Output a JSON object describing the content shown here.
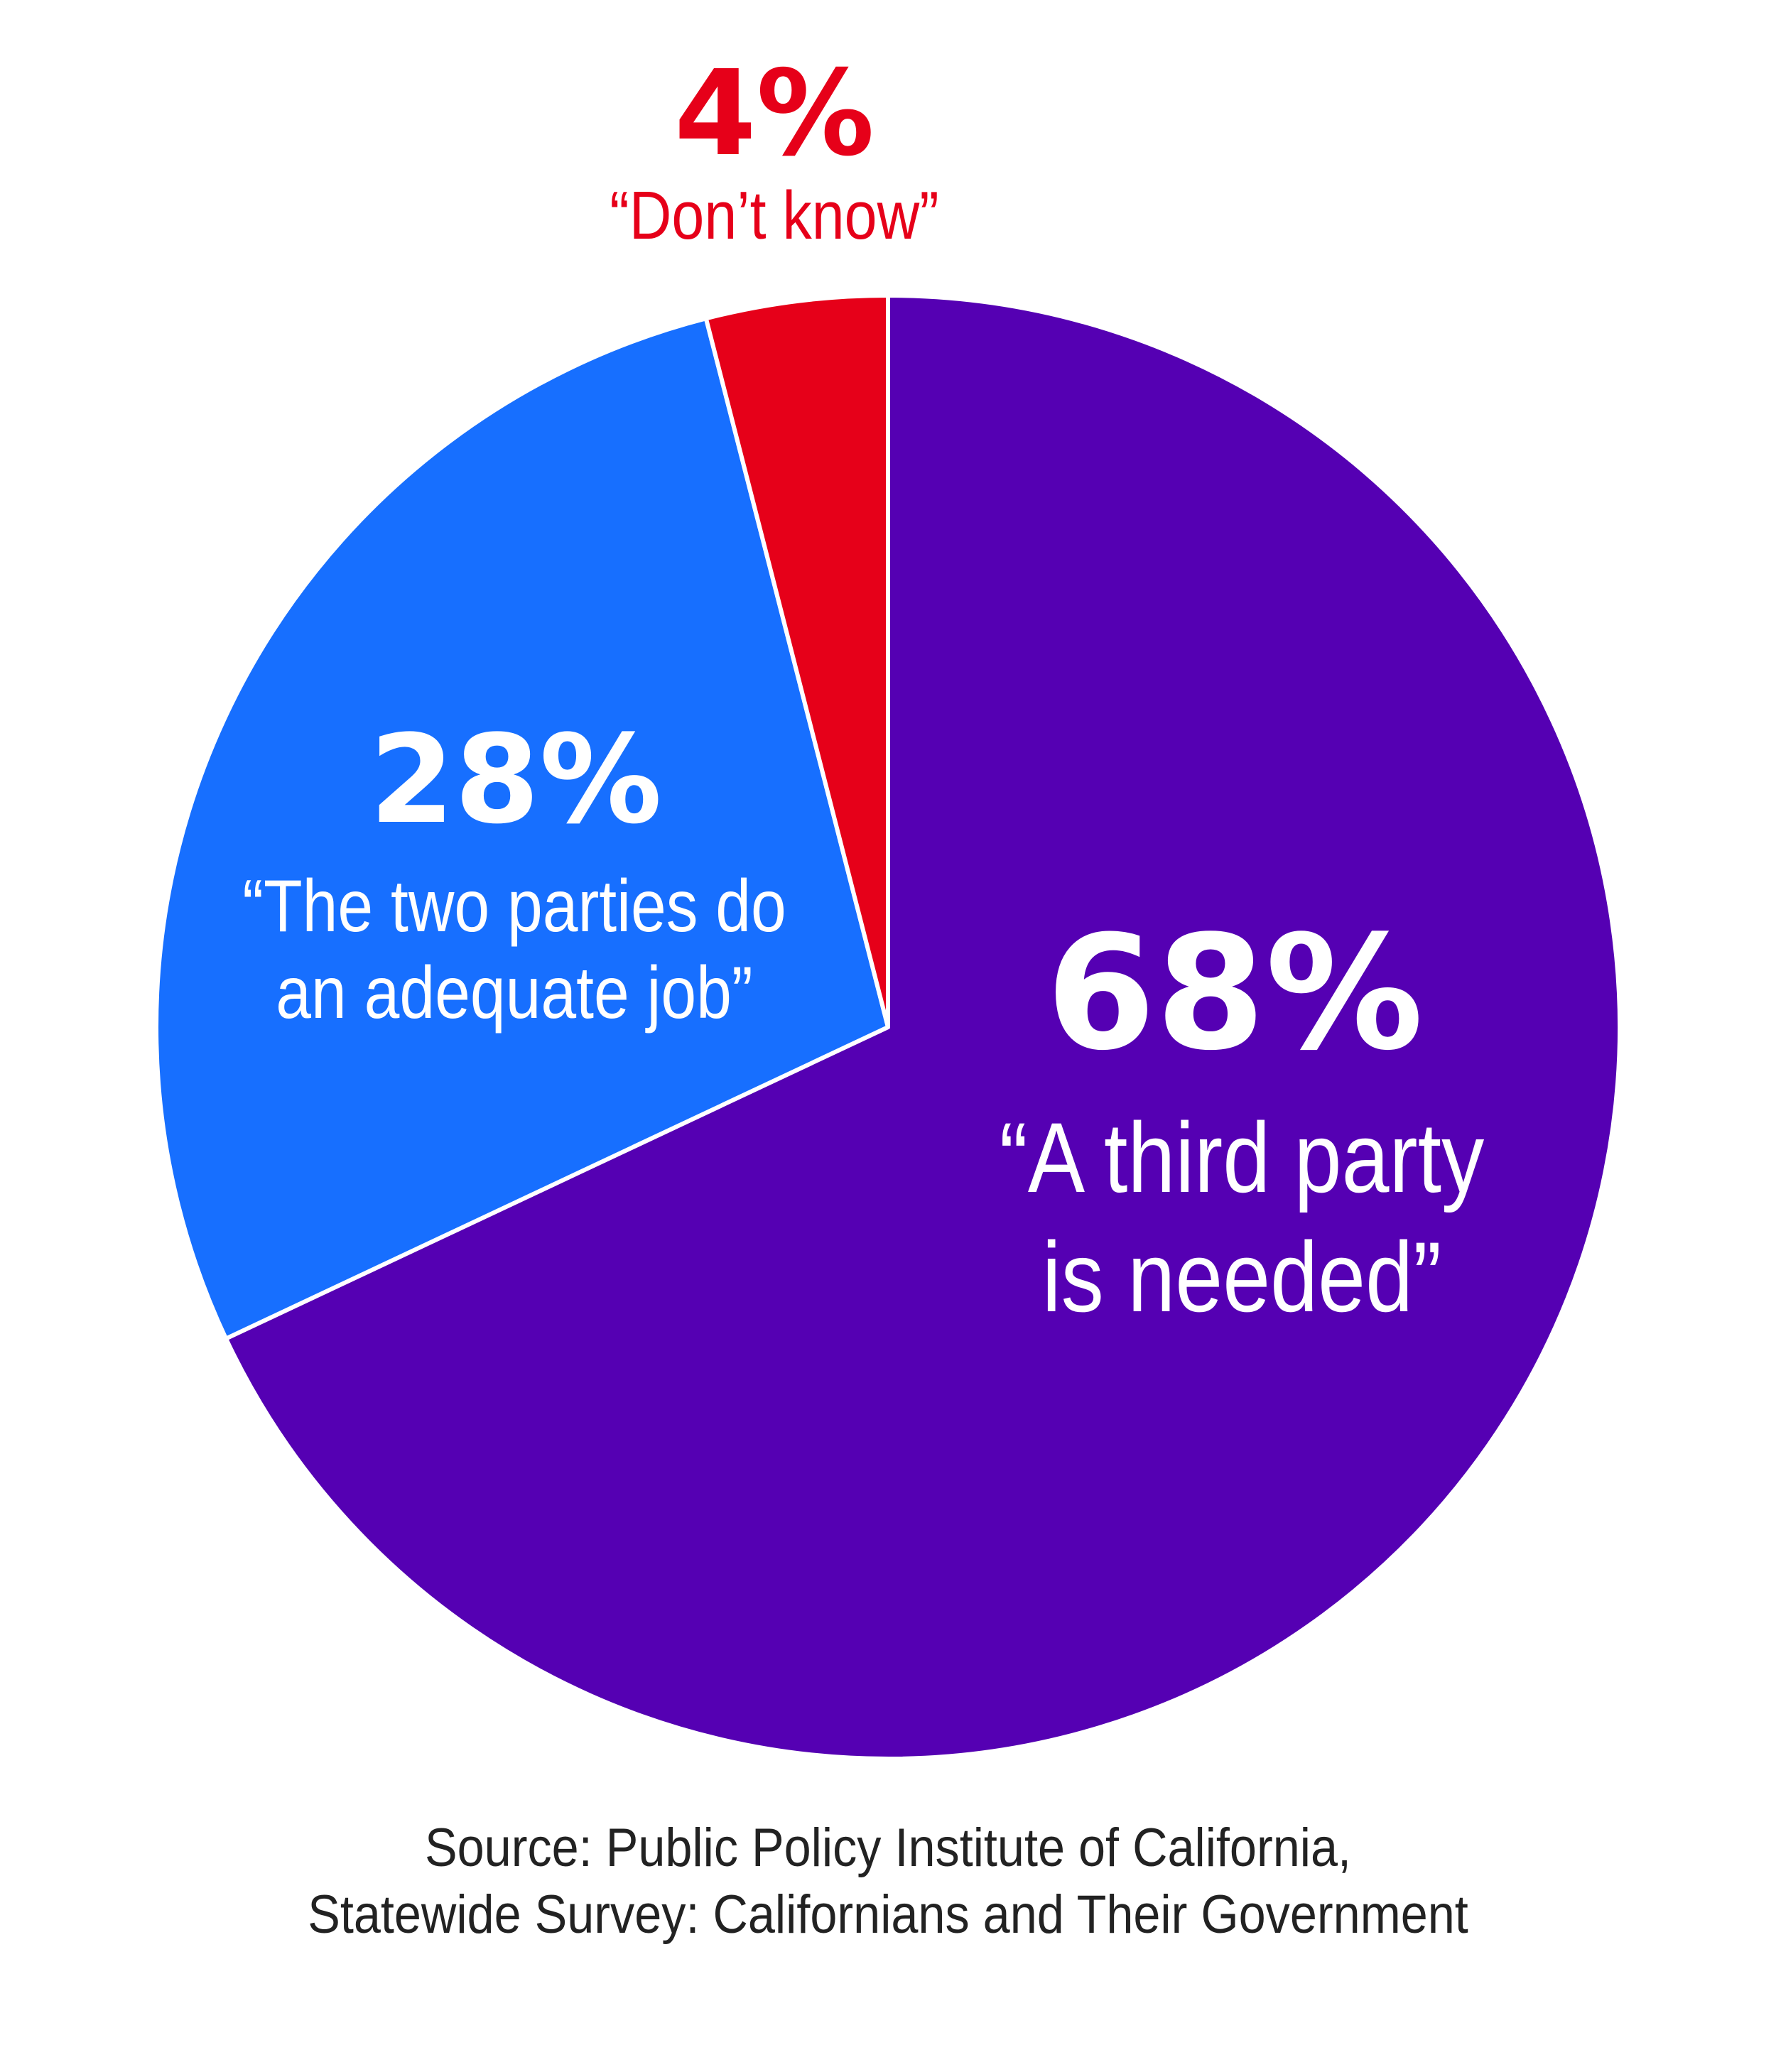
{
  "chart_data": {
    "type": "pie",
    "start": "12 o'clock, clockwise",
    "slices": [
      {
        "value": 68,
        "percent_label": "68%",
        "description_lines": [
          "“A third party",
          "is needed”"
        ],
        "color": "#5500B3"
      },
      {
        "value": 28,
        "percent_label": "28%",
        "description_lines": [
          "“The two parties do",
          "an adequate job”"
        ],
        "color": "#176FFF"
      },
      {
        "value": 4,
        "percent_label": "4%",
        "description_lines": [
          "“Don’t know”"
        ],
        "color": "#E60019"
      }
    ],
    "label_colors": {
      "inside": "#FFFFFF",
      "outside": "#E60019"
    }
  },
  "source": {
    "line1": "Source: Public Policy Institute of California,",
    "line2": "Statewide Survey: Californians and Their Government"
  }
}
